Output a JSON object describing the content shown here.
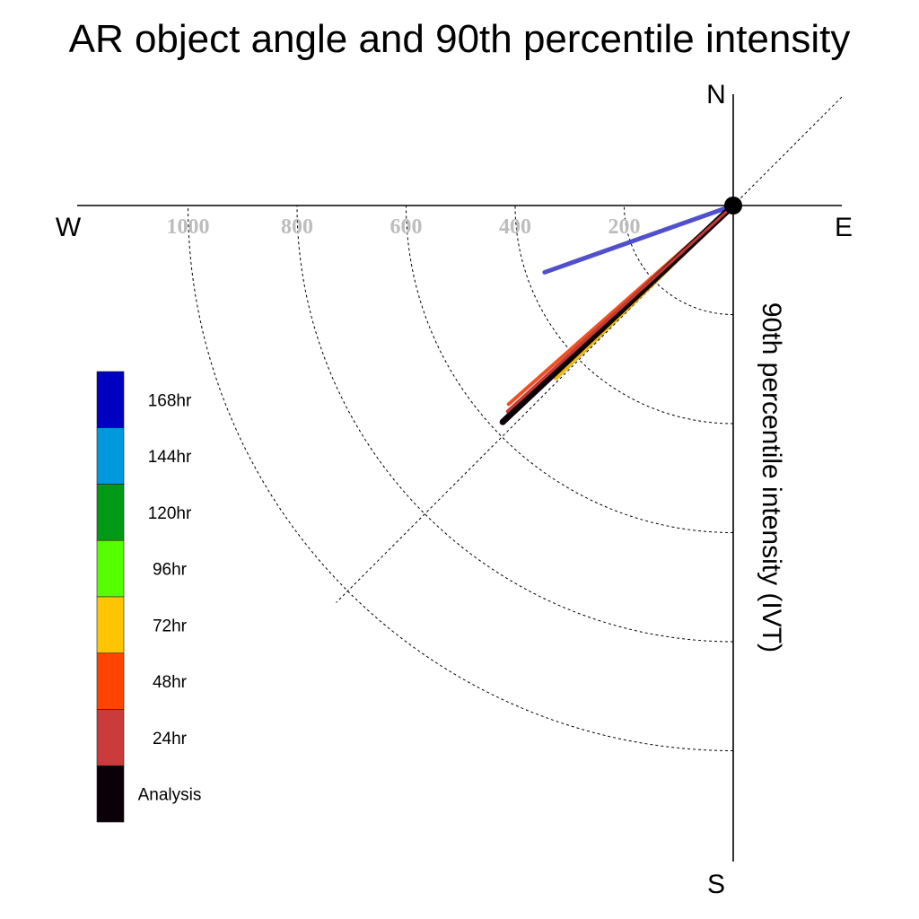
{
  "chart_data": {
    "type": "polar-vector",
    "title": "AR object angle and 90th percentile intensity",
    "axis_label": "90th percentile intensity (IVT)",
    "compass": {
      "north": "N",
      "south": "S",
      "east": "E",
      "west": "W"
    },
    "radial_ticks": [
      "200",
      "400",
      "600",
      "800",
      "1000"
    ],
    "radial_tick_values": [
      200,
      400,
      600,
      800,
      1000
    ],
    "r_max": 1000,
    "grid": "dotted",
    "legend_placement": "left",
    "legend": [
      {
        "label": "168hr",
        "color": "#0000c0"
      },
      {
        "label": "144hr",
        "color": "#0099dd"
      },
      {
        "label": "120hr",
        "color": "#009a17"
      },
      {
        "label": "96hr",
        "color": "#55ff00"
      },
      {
        "label": "72hr",
        "color": "#ffc500"
      },
      {
        "label": "48hr",
        "color": "#ff4400"
      },
      {
        "label": "24hr",
        "color": "#cc3b3b"
      },
      {
        "label": "Analysis",
        "color": "#0c0008"
      }
    ],
    "series": [
      {
        "name": "168hr",
        "color": "#3e3ec8",
        "direction_deg": 250.5,
        "intensity": 367
      },
      {
        "name": "72hr",
        "color": "#f2be00",
        "direction_deg": 225.8,
        "intensity": 454
      },
      {
        "name": "48hr",
        "color": "#ee5020",
        "direction_deg": 228.5,
        "intensity": 550
      },
      {
        "name": "24hr",
        "color": "#c23a3a",
        "direction_deg": 227.6,
        "intensity": 560
      },
      {
        "name": "Analysis",
        "color": "#0c0008",
        "direction_deg": 226.8,
        "intensity": 580
      }
    ]
  }
}
